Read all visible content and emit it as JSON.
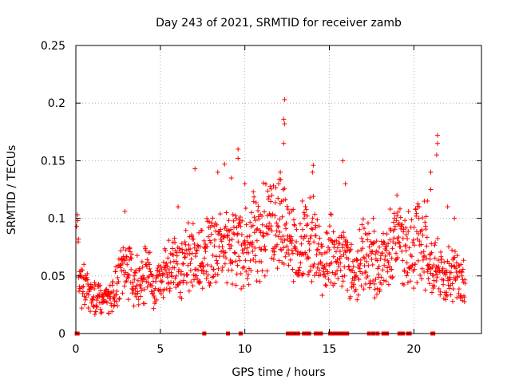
{
  "chart_data": {
    "type": "scatter",
    "title": "Day 243 of 2021, SRMTID for receiver zamb",
    "xlabel": "GPS time / hours",
    "ylabel": "SRMTID / TECUs",
    "xlim": [
      0,
      24
    ],
    "ylim": [
      0,
      0.25
    ],
    "xticks": [
      0,
      5,
      10,
      15,
      20
    ],
    "xtick_labels": [
      "0",
      "5",
      "10",
      "15",
      "20"
    ],
    "yticks": [
      0,
      0.05,
      0.1,
      0.15,
      0.2,
      0.25
    ],
    "ytick_labels": [
      "0",
      "0.05",
      "0.1",
      "0.15",
      "0.2",
      "0.25"
    ],
    "grid": true,
    "marker": "+",
    "color": "#ff0000",
    "series": [
      {
        "name": "SRMTID",
        "trend": [
          [
            0,
            0.093
          ],
          [
            0.25,
            0.045
          ],
          [
            0.5,
            0.04
          ],
          [
            1,
            0.032
          ],
          [
            1.5,
            0.03
          ],
          [
            2,
            0.03
          ],
          [
            2.5,
            0.045
          ],
          [
            3,
            0.06
          ],
          [
            3.5,
            0.045
          ],
          [
            4,
            0.05
          ],
          [
            4.3,
            0.065
          ],
          [
            4.6,
            0.035
          ],
          [
            5,
            0.045
          ],
          [
            5.5,
            0.055
          ],
          [
            6,
            0.06
          ],
          [
            6.5,
            0.065
          ],
          [
            7,
            0.07
          ],
          [
            7.5,
            0.065
          ],
          [
            8,
            0.07
          ],
          [
            8.5,
            0.075
          ],
          [
            9,
            0.075
          ],
          [
            9.5,
            0.075
          ],
          [
            10,
            0.075
          ],
          [
            10.5,
            0.085
          ],
          [
            11,
            0.09
          ],
          [
            11.5,
            0.095
          ],
          [
            12,
            0.1
          ],
          [
            12.5,
            0.09
          ],
          [
            13,
            0.07
          ],
          [
            13.5,
            0.075
          ],
          [
            14,
            0.08
          ],
          [
            14.5,
            0.06
          ],
          [
            15,
            0.07
          ],
          [
            15.5,
            0.07
          ],
          [
            16,
            0.065
          ],
          [
            16.5,
            0.05
          ],
          [
            17,
            0.07
          ],
          [
            17.5,
            0.06
          ],
          [
            18,
            0.055
          ],
          [
            18.5,
            0.065
          ],
          [
            19,
            0.085
          ],
          [
            19.5,
            0.07
          ],
          [
            20,
            0.075
          ],
          [
            20.5,
            0.08
          ],
          [
            21,
            0.06
          ],
          [
            21.5,
            0.055
          ],
          [
            22,
            0.05
          ],
          [
            22.5,
            0.05
          ],
          [
            23,
            0.045
          ]
        ],
        "peaks": [
          [
            12.35,
            0.203
          ],
          [
            12.3,
            0.186
          ],
          [
            12.35,
            0.182
          ],
          [
            12.3,
            0.165
          ],
          [
            21.4,
            0.172
          ],
          [
            21.4,
            0.165
          ],
          [
            21.35,
            0.155
          ],
          [
            9.6,
            0.16
          ],
          [
            9.6,
            0.152
          ],
          [
            15.8,
            0.15
          ],
          [
            14.05,
            0.146
          ],
          [
            14.0,
            0.14
          ],
          [
            7.05,
            0.143
          ],
          [
            8.8,
            0.147
          ],
          [
            8.4,
            0.14
          ],
          [
            9.2,
            0.135
          ],
          [
            10.0,
            0.13
          ],
          [
            12.1,
            0.14
          ],
          [
            12.0,
            0.13
          ],
          [
            11.6,
            0.12
          ],
          [
            10.5,
            0.123
          ],
          [
            15.95,
            0.13
          ],
          [
            21.0,
            0.14
          ],
          [
            21.0,
            0.125
          ],
          [
            20.8,
            0.115
          ],
          [
            22.0,
            0.11
          ],
          [
            19.0,
            0.12
          ],
          [
            2.9,
            0.106
          ],
          [
            6.05,
            0.11
          ],
          [
            13.4,
            0.115
          ],
          [
            13.5,
            0.105
          ],
          [
            18.6,
            0.108
          ],
          [
            17.6,
            0.1
          ],
          [
            22.4,
            0.1
          ],
          [
            0.05,
            0.093
          ]
        ],
        "zeros": [
          0.05,
          0.1,
          7.6,
          9.0,
          9.75,
          12.55,
          12.65,
          12.75,
          12.85,
          12.95,
          13.05,
          13.15,
          13.5,
          13.6,
          13.8,
          14.2,
          14.4,
          14.5,
          15.05,
          15.15,
          15.25,
          15.35,
          15.55,
          15.75,
          15.95,
          16.05,
          17.35,
          17.6,
          17.85,
          18.2,
          18.35,
          18.4,
          19.15,
          19.35,
          19.65,
          19.75,
          21.1,
          21.15
        ]
      }
    ]
  }
}
